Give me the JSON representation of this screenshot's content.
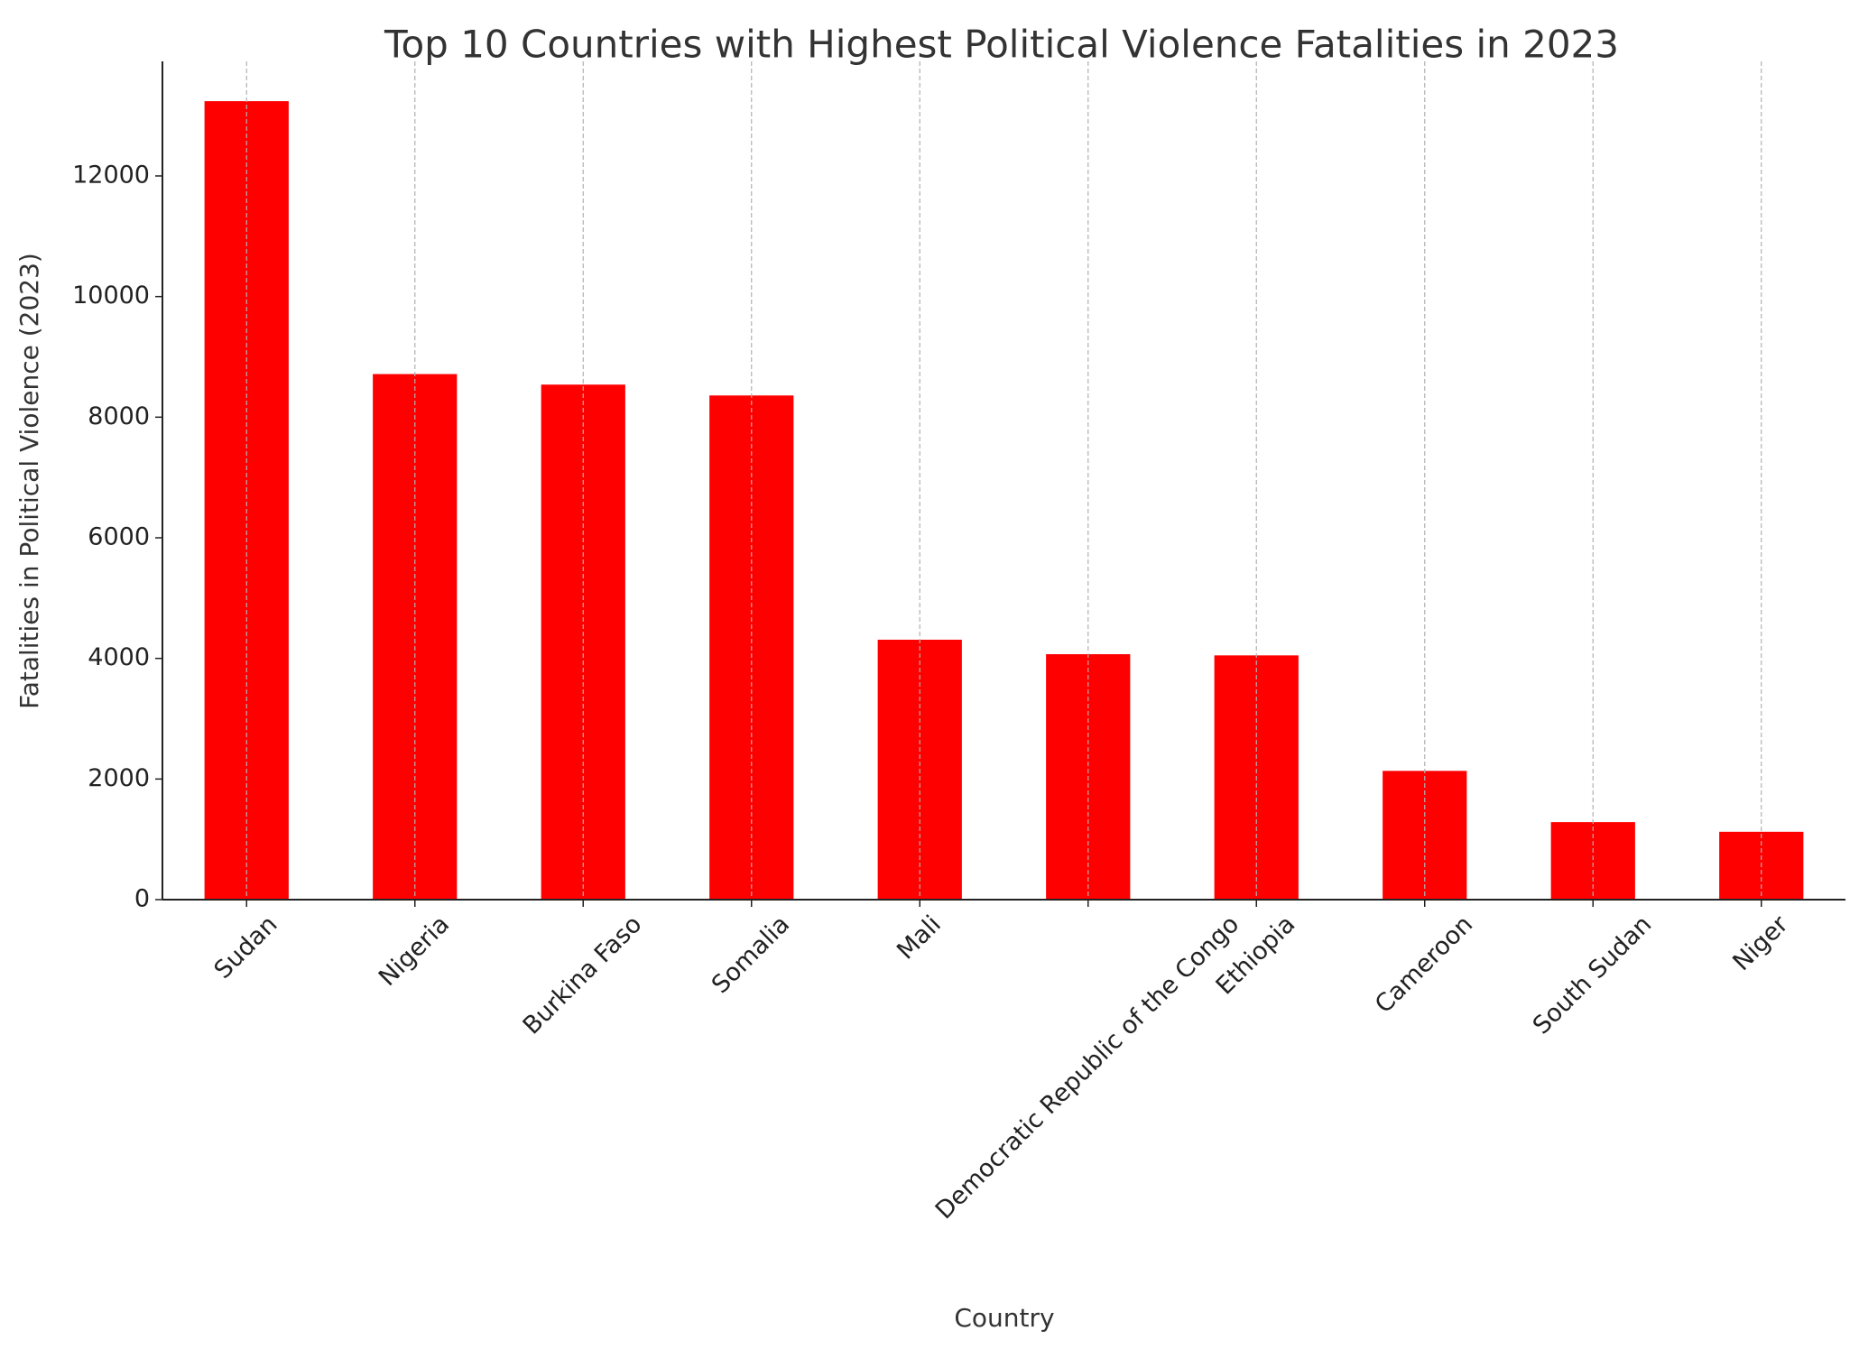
{
  "chart_data": {
    "type": "bar",
    "title": "Top 10 Countries with Highest Political Violence Fatalities in 2023",
    "x_label": "Country",
    "y_label": "Fatalities in Political Violence (2023)",
    "categories": [
      "Sudan",
      "Nigeria",
      "Burkina Faso",
      "Somalia",
      "Mali",
      "Democratic Republic of the Congo",
      "Ethiopia",
      "Cameroon",
      "South Sudan",
      "Niger"
    ],
    "values": [
      13240,
      8715,
      8540,
      8360,
      4310,
      4070,
      4050,
      2135,
      1285,
      1125
    ],
    "color": "#ff0000",
    "ylim": [
      0,
      13900
    ],
    "yticks": [
      0,
      2000,
      4000,
      6000,
      8000,
      10000,
      12000
    ],
    "grid": true
  }
}
